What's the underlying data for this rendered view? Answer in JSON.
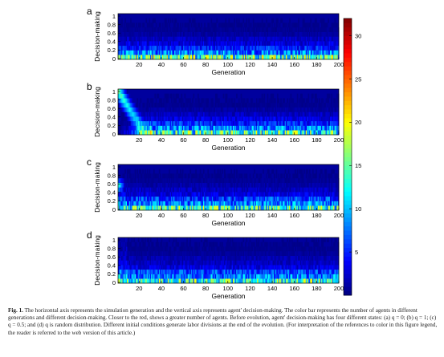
{
  "chart_data": [
    {
      "type": "heatmap",
      "panel_label": "a",
      "xlabel": "Generation",
      "ylabel": "Decision-making",
      "xlim": [
        1,
        200
      ],
      "ylim": [
        0,
        1
      ],
      "xticks": [
        "20",
        "40",
        "60",
        "80",
        "100",
        "120",
        "140",
        "160",
        "180",
        "200"
      ],
      "yticks": [
        "0",
        "0.2",
        "0.4",
        "0.6",
        "0.8",
        "1"
      ],
      "initial_condition": "all agents start at 0",
      "steady_band": [
        0,
        0.3
      ],
      "row_counts_typical": [
        14,
        8,
        5,
        3,
        2,
        1,
        0.6,
        0.3,
        0.2,
        0.1
      ]
    },
    {
      "type": "heatmap",
      "panel_label": "b",
      "xlabel": "Generation",
      "ylabel": "Decision-making",
      "xlim": [
        1,
        200
      ],
      "ylim": [
        0,
        1
      ],
      "xticks": [
        "20",
        "40",
        "60",
        "80",
        "100",
        "120",
        "140",
        "160",
        "180",
        "200"
      ],
      "yticks": [
        "0",
        "0.2",
        "0.4",
        "0.6",
        "0.8",
        "1"
      ],
      "initial_condition": "all agents start at 1, drift down to the 0-0.3 band by ~generation 25",
      "steady_band": [
        0,
        0.3
      ],
      "row_counts_typical": [
        13,
        8,
        5,
        3,
        2,
        1,
        0.5,
        0.3,
        0.2,
        0.1
      ]
    },
    {
      "type": "heatmap",
      "panel_label": "c",
      "xlabel": "Generation",
      "ylabel": "Decision-making",
      "xlim": [
        1,
        200
      ],
      "ylim": [
        0,
        1
      ],
      "xticks": [
        "20",
        "40",
        "60",
        "80",
        "100",
        "120",
        "140",
        "160",
        "180",
        "200"
      ],
      "yticks": [
        "0",
        "0.2",
        "0.4",
        "0.6",
        "0.8",
        "1"
      ],
      "initial_condition": "all agents start at 0.5",
      "steady_band": [
        0,
        0.3
      ],
      "row_counts_typical": [
        13,
        8,
        6,
        3,
        2,
        1.2,
        0.7,
        0.3,
        0.2,
        0.1
      ]
    },
    {
      "type": "heatmap",
      "panel_label": "d",
      "xlabel": "Generation",
      "ylabel": "Decision-making",
      "xlim": [
        1,
        200
      ],
      "ylim": [
        0,
        1
      ],
      "xticks": [
        "20",
        "40",
        "60",
        "80",
        "100",
        "120",
        "140",
        "160",
        "180",
        "200"
      ],
      "yticks": [
        "0",
        "0.2",
        "0.4",
        "0.6",
        "0.8",
        "1"
      ],
      "initial_condition": "random distribution",
      "steady_band": [
        0,
        0.3
      ],
      "row_counts_typical": [
        13,
        8,
        6,
        3,
        2,
        1.5,
        0.8,
        0.4,
        0.3,
        0.2
      ]
    }
  ],
  "colorbar": {
    "colormap": "jet",
    "range": [
      0,
      32
    ],
    "ticks": [
      "5",
      "10",
      "15",
      "20",
      "25",
      "30"
    ]
  },
  "caption": {
    "label": "Fig. 1.",
    "text": "The horizontal axis represents the simulation generation and the vertical axis represents agent' decision-making. The color bar represents the number of agents in different generations and different decision-making. Closer to the red, shows a greater number of agents. Before evolution, agent' decision-making has four different states: (a) q = 0; (b) q = 1; (c) q = 0.5; and (d) q is random distribution. Different initial conditions generate labor divisions at the end of the evolution. (For interpretation of the references to color in this figure legend, the reader is referred to the web version of this article.)"
  }
}
